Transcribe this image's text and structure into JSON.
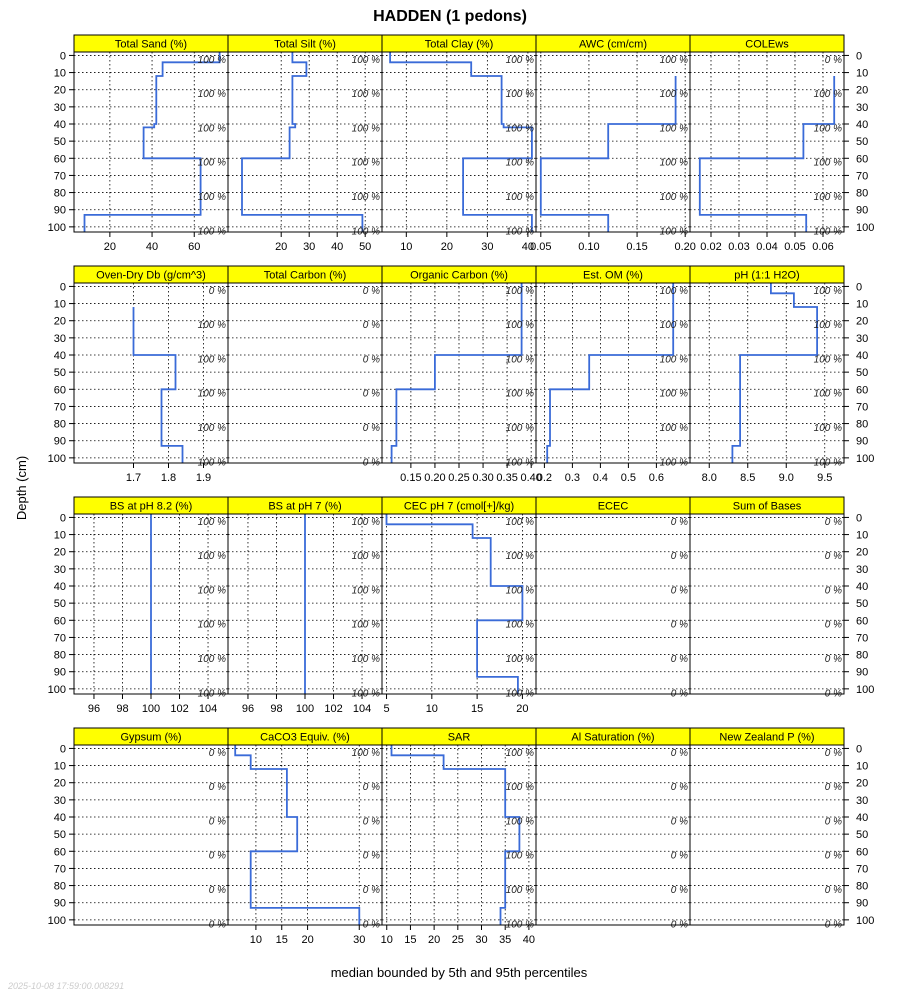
{
  "title": "HADDEN (1 pedons)",
  "xlabel": "median bounded by 5th and 95th percentiles",
  "ylabel": "Depth (cm)",
  "timestamp": "2025-10-08 17:59:00.008291",
  "colors": {
    "strip": "#ffff00",
    "line": "#3a6bd8"
  },
  "chart_data": {
    "type": "line",
    "title": "HADDEN (1 pedons)",
    "xlabel": "median bounded by 5th and 95th percentiles",
    "ylabel": "Depth (cm)",
    "ylim": [
      103,
      -2
    ],
    "yticks": [
      0,
      10,
      20,
      30,
      40,
      50,
      60,
      70,
      80,
      90,
      100
    ],
    "grid": true,
    "percent_label_depths": [
      2,
      22,
      42,
      62,
      82,
      102
    ],
    "panels": [
      {
        "name": "Total Sand (%)",
        "xlim": [
          3,
          76
        ],
        "xticks": [
          20,
          40,
          60
        ],
        "pct": [
          "100 %",
          "100 %",
          "100 %",
          "100 %",
          "100 %",
          "100 %"
        ],
        "x": [
          72,
          72,
          45,
          45,
          42,
          42,
          41,
          41,
          36,
          36,
          63,
          63,
          8,
          8
        ],
        "y": [
          -2,
          4,
          4,
          12,
          12,
          40,
          40,
          42,
          42,
          60,
          60,
          93,
          93,
          103
        ]
      },
      {
        "name": "Total Silt (%)",
        "xlim": [
          1,
          56
        ],
        "xticks": [
          20,
          30,
          40,
          50
        ],
        "pct": [
          "100 %",
          "100 %",
          "100 %",
          "100 %",
          "100 %",
          "100 %"
        ],
        "x": [
          24,
          24,
          29,
          29,
          24,
          24,
          25,
          25,
          23,
          23,
          6,
          6,
          49,
          49
        ],
        "y": [
          -2,
          4,
          4,
          12,
          12,
          40,
          40,
          42,
          42,
          60,
          60,
          93,
          93,
          103
        ]
      },
      {
        "name": "Total Clay (%)",
        "xlim": [
          4,
          42
        ],
        "xticks": [
          10,
          20,
          30,
          40
        ],
        "pct": [
          "100 %",
          "100 %",
          "100 %",
          "100 %",
          "100 %",
          "100 %"
        ],
        "x": [
          6,
          6,
          26,
          26,
          33.5,
          33.5,
          34,
          34,
          41,
          41,
          24,
          24,
          41,
          41
        ],
        "y": [
          -2,
          4,
          4,
          12,
          12,
          40,
          40,
          42,
          42,
          60,
          60,
          93,
          93,
          103
        ]
      },
      {
        "name": "AWC (cm/cm)",
        "xlim": [
          0.045,
          0.205
        ],
        "xticks": [
          0.05,
          0.1,
          0.15,
          0.2
        ],
        "xtick_labels": [
          "0.05",
          "0.10",
          "0.15",
          "0.20"
        ],
        "pct": [
          "100 %",
          "100 %",
          "100 %",
          "100 %",
          "100 %",
          "100 %"
        ],
        "x": [
          0.19,
          0.19,
          0.12,
          0.12,
          0.05,
          0.05,
          0.12,
          0.12
        ],
        "y": [
          12,
          40,
          40,
          60,
          60,
          93,
          93,
          103
        ]
      },
      {
        "name": "COLEws",
        "xlim": [
          0.0125,
          0.0675
        ],
        "xticks": [
          0.02,
          0.03,
          0.04,
          0.05,
          0.06
        ],
        "xtick_labels": [
          "0.02",
          "0.03",
          "0.04",
          "0.05",
          "0.06"
        ],
        "pct": [
          "0 %",
          "100 %",
          "100 %",
          "100 %",
          "100 %",
          "100 %"
        ],
        "x": [
          0.064,
          0.064,
          0.053,
          0.053,
          0.016,
          0.016,
          0.054,
          0.054
        ],
        "y": [
          12,
          40,
          40,
          60,
          60,
          93,
          93,
          103
        ]
      },
      {
        "name": "Oven-Dry Db (g/cm^3)",
        "xlim": [
          1.53,
          1.97
        ],
        "xticks": [
          1.7,
          1.8,
          1.9
        ],
        "pct": [
          "0 %",
          "100 %",
          "100 %",
          "100 %",
          "100 %",
          "100 %"
        ],
        "x": [
          1.7,
          1.7,
          1.82,
          1.82,
          1.78,
          1.78,
          1.84,
          1.84
        ],
        "y": [
          12,
          40,
          40,
          60,
          60,
          93,
          93,
          103
        ]
      },
      {
        "name": "Total Carbon (%)",
        "xlim": [
          0,
          1
        ],
        "xticks": [],
        "pct": [
          "0 %",
          "0 %",
          "0 %",
          "0 %",
          "0 %",
          "0 %"
        ],
        "x": [],
        "y": []
      },
      {
        "name": "Organic Carbon (%)",
        "xlim": [
          0.09,
          0.41
        ],
        "xticks": [
          0.15,
          0.2,
          0.25,
          0.3,
          0.35,
          0.4
        ],
        "xtick_labels": [
          "0.15",
          "0.20",
          "0.25",
          "0.30",
          "0.35",
          "0.40"
        ],
        "pct": [
          "100 %",
          "100 %",
          "100 %",
          "100 %",
          "100 %",
          "100 %"
        ],
        "x": [
          0.38,
          0.38,
          0.2,
          0.2,
          0.12,
          0.12,
          0.11,
          0.11
        ],
        "y": [
          -2,
          40,
          40,
          60,
          60,
          93,
          93,
          103
        ]
      },
      {
        "name": "Est. OM (%)",
        "xlim": [
          0.17,
          0.72
        ],
        "xticks": [
          0.2,
          0.3,
          0.4,
          0.5,
          0.6
        ],
        "pct": [
          "100 %",
          "100 %",
          "100 %",
          "100 %",
          "100 %",
          "100 %"
        ],
        "x": [
          0.66,
          0.66,
          0.36,
          0.36,
          0.22,
          0.22,
          0.21,
          0.21
        ],
        "y": [
          -2,
          40,
          40,
          60,
          60,
          93,
          93,
          103
        ]
      },
      {
        "name": "pH (1:1 H2O)",
        "xlim": [
          7.75,
          9.75
        ],
        "xticks": [
          8.0,
          8.5,
          9.0,
          9.5
        ],
        "xtick_labels": [
          "8.0",
          "8.5",
          "9.0",
          "9.5"
        ],
        "pct": [
          "100 %",
          "100 %",
          "100 %",
          "100 %",
          "100 %",
          "100 %"
        ],
        "x": [
          8.8,
          8.8,
          9.1,
          9.1,
          9.4,
          9.4,
          8.4,
          8.4,
          8.3,
          8.3
        ],
        "y": [
          -2,
          4,
          4,
          12,
          12,
          40,
          40,
          93,
          93,
          103
        ]
      },
      {
        "name": "BS at pH 8.2 (%)",
        "xlim": [
          94.6,
          105.4
        ],
        "xticks": [
          96,
          98,
          100,
          102,
          104
        ],
        "pct": [
          "100 %",
          "100 %",
          "100 %",
          "100 %",
          "100 %",
          "100 %"
        ],
        "x": [
          100,
          100
        ],
        "y": [
          -2,
          103
        ]
      },
      {
        "name": "BS at pH 7 (%)",
        "xlim": [
          94.6,
          105.4
        ],
        "xticks": [
          96,
          98,
          100,
          102,
          104
        ],
        "pct": [
          "100 %",
          "100 %",
          "100 %",
          "100 %",
          "100 %",
          "100 %"
        ],
        "x": [
          100,
          100
        ],
        "y": [
          -2,
          103
        ]
      },
      {
        "name": "CEC pH 7 (cmol[+]/kg)",
        "xlim": [
          4.5,
          21.5
        ],
        "xticks": [
          5,
          10,
          15,
          20
        ],
        "pct": [
          "100 %",
          "100 %",
          "100 %",
          "100 %",
          "100 %",
          "100 %"
        ],
        "x": [
          5,
          5,
          14.5,
          14.5,
          16.5,
          16.5,
          20,
          20,
          15,
          15,
          19.5,
          19.5
        ],
        "y": [
          -2,
          4,
          4,
          12,
          12,
          40,
          40,
          60,
          60,
          93,
          93,
          103
        ]
      },
      {
        "name": "ECEC",
        "xlim": [
          0,
          1
        ],
        "xticks": [],
        "pct": [
          "0 %",
          "0 %",
          "0 %",
          "0 %",
          "0 %",
          "0 %"
        ],
        "x": [],
        "y": []
      },
      {
        "name": "Sum of Bases",
        "xlim": [
          0,
          1
        ],
        "xticks": [],
        "pct": [
          "0 %",
          "0 %",
          "0 %",
          "0 %",
          "0 %",
          "0 %"
        ],
        "x": [],
        "y": []
      },
      {
        "name": "Gypsum (%)",
        "xlim": [
          0,
          1
        ],
        "xticks": [],
        "pct": [
          "0 %",
          "0 %",
          "0 %",
          "0 %",
          "0 %",
          "0 %"
        ],
        "x": [],
        "y": []
      },
      {
        "name": "CaCO3 Equiv. (%)",
        "xlim": [
          4.6,
          34.4
        ],
        "xticks": [
          10,
          15,
          20,
          30
        ],
        "pct": [
          "100 %",
          "0 %",
          "0 %",
          "0 %",
          "0 %",
          "0 %"
        ],
        "x": [
          6,
          6,
          9,
          9,
          16,
          16,
          18,
          18,
          9,
          9,
          30,
          30
        ],
        "y": [
          -2,
          4,
          4,
          12,
          12,
          40,
          40,
          60,
          60,
          93,
          93,
          103
        ]
      },
      {
        "name": "SAR",
        "xlim": [
          9,
          41.5
        ],
        "xticks": [
          10,
          15,
          20,
          25,
          30,
          35,
          40
        ],
        "pct": [
          "100 %",
          "100 %",
          "100 %",
          "100 %",
          "100 %",
          "100 %"
        ],
        "x": [
          11,
          11,
          22,
          22,
          35,
          35,
          38,
          38,
          35,
          35,
          34,
          34
        ],
        "y": [
          -2,
          4,
          4,
          12,
          12,
          40,
          40,
          60,
          60,
          93,
          93,
          103
        ]
      },
      {
        "name": "Al Saturation (%)",
        "xlim": [
          0,
          1
        ],
        "xticks": [],
        "pct": [
          "0 %",
          "0 %",
          "0 %",
          "0 %",
          "0 %",
          "0 %"
        ],
        "x": [],
        "y": []
      },
      {
        "name": "New Zealand P (%)",
        "xlim": [
          0,
          1
        ],
        "xticks": [],
        "pct": [
          "0 %",
          "0 %",
          "0 %",
          "0 %",
          "0 %",
          "0 %"
        ],
        "x": [],
        "y": []
      }
    ]
  }
}
